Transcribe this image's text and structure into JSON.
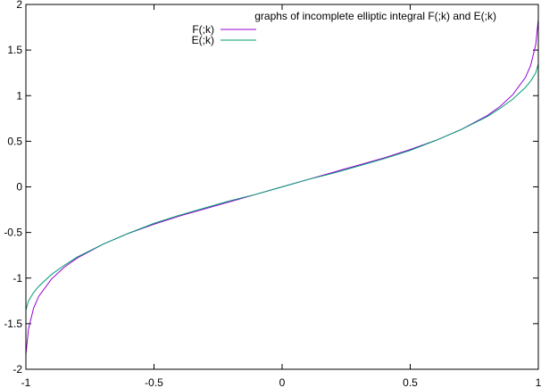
{
  "chart_data": {
    "type": "line",
    "title": "graphs of incomplete elliptic integral F(;k) and E(;k)",
    "xlim": [
      -1,
      1
    ],
    "ylim": [
      -2,
      2
    ],
    "x_ticks": [
      {
        "value": -1,
        "label": "-1"
      },
      {
        "value": -0.5,
        "label": "-0.5"
      },
      {
        "value": 0,
        "label": "0"
      },
      {
        "value": 0.5,
        "label": "0.5"
      },
      {
        "value": 1,
        "label": "1"
      }
    ],
    "y_ticks": [
      {
        "value": -2,
        "label": "-2"
      },
      {
        "value": -1.5,
        "label": "-1.5"
      },
      {
        "value": -1,
        "label": "-1"
      },
      {
        "value": -0.5,
        "label": "-0.5"
      },
      {
        "value": 0,
        "label": "0"
      },
      {
        "value": 0.5,
        "label": "0.5"
      },
      {
        "value": 1,
        "label": "1"
      },
      {
        "value": 1.5,
        "label": "1.5"
      },
      {
        "value": 2,
        "label": "2"
      }
    ],
    "grid": false,
    "legend_position": "top-center",
    "series": [
      {
        "name": "F(;k)",
        "color": "#9400d3",
        "x": [
          -1,
          -0.99,
          -0.97,
          -0.95,
          -0.9,
          -0.85,
          -0.8,
          -0.7,
          -0.6,
          -0.5,
          -0.4,
          -0.3,
          -0.2,
          -0.1,
          0,
          0.1,
          0.2,
          0.3,
          0.4,
          0.5,
          0.6,
          0.7,
          0.8,
          0.85,
          0.9,
          0.95,
          0.97,
          0.99,
          1
        ],
        "y": [
          -1.84,
          -1.56,
          -1.33,
          -1.2,
          -1.01,
          -0.88,
          -0.78,
          -0.63,
          -0.51,
          -0.41,
          -0.32,
          -0.24,
          -0.16,
          -0.08,
          0,
          0.08,
          0.16,
          0.24,
          0.32,
          0.41,
          0.51,
          0.63,
          0.78,
          0.88,
          1.01,
          1.2,
          1.33,
          1.56,
          1.84
        ]
      },
      {
        "name": "E(;k)",
        "color": "#009e73",
        "x": [
          -1,
          -0.99,
          -0.97,
          -0.95,
          -0.9,
          -0.85,
          -0.8,
          -0.7,
          -0.6,
          -0.5,
          -0.4,
          -0.3,
          -0.2,
          -0.1,
          0,
          0.1,
          0.2,
          0.3,
          0.4,
          0.5,
          0.6,
          0.7,
          0.8,
          0.85,
          0.9,
          0.95,
          0.97,
          0.99,
          1
        ],
        "y": [
          -1.35,
          -1.25,
          -1.16,
          -1.09,
          -0.96,
          -0.86,
          -0.77,
          -0.63,
          -0.51,
          -0.4,
          -0.31,
          -0.23,
          -0.15,
          -0.08,
          0,
          0.08,
          0.15,
          0.23,
          0.31,
          0.4,
          0.51,
          0.63,
          0.77,
          0.86,
          0.96,
          1.09,
          1.16,
          1.25,
          1.35
        ]
      }
    ]
  }
}
